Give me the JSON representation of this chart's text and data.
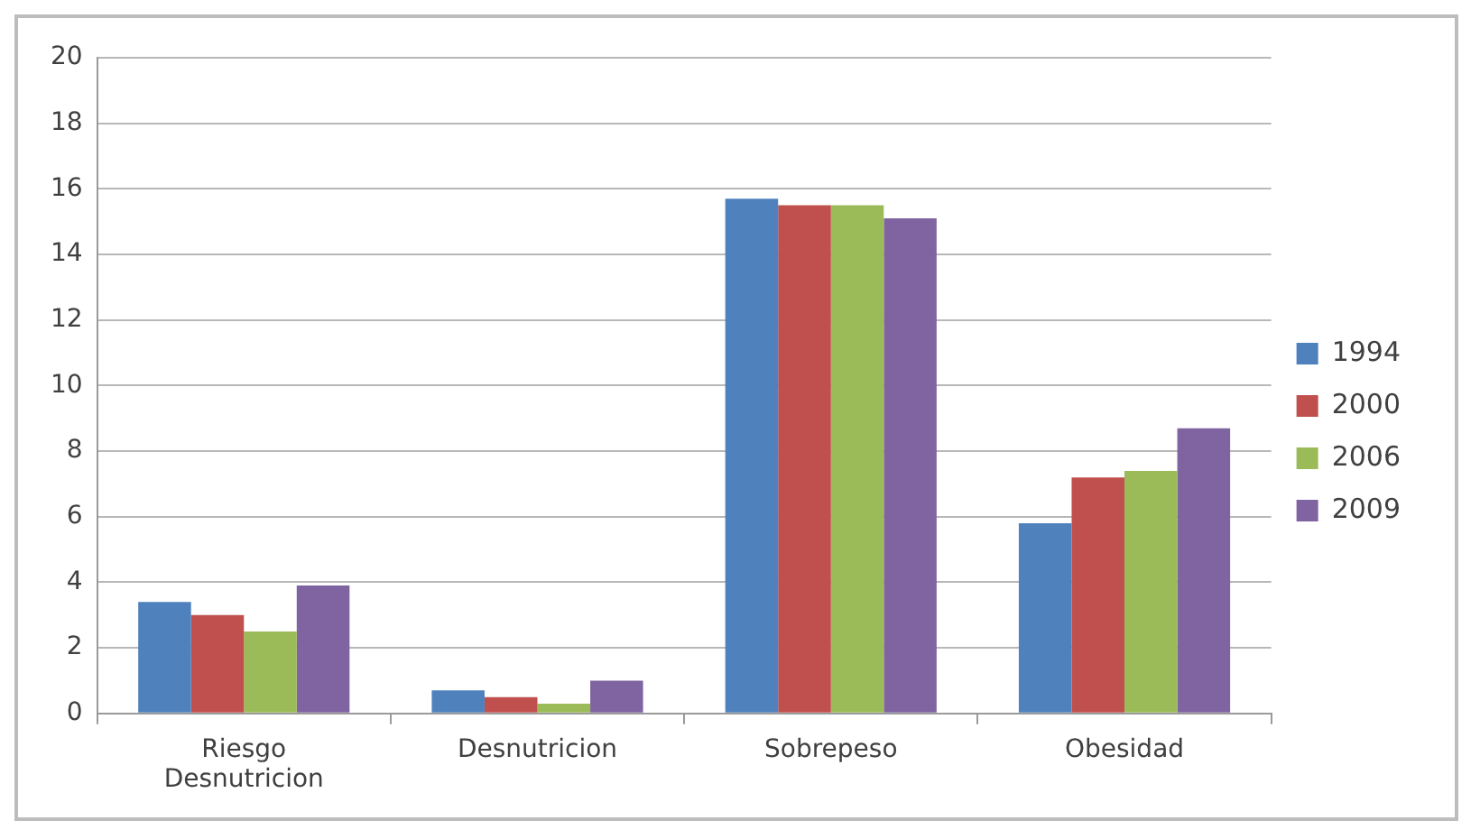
{
  "chart_data": {
    "type": "bar",
    "categories": [
      "Riesgo Desnutricion",
      "Desnutricion",
      "Sobrepeso",
      "Obesidad"
    ],
    "series": [
      {
        "name": "1994",
        "color": "#4f81bd",
        "values": [
          3.4,
          0.7,
          15.7,
          5.8
        ]
      },
      {
        "name": "2000",
        "color": "#c0504d",
        "values": [
          3.0,
          0.5,
          15.5,
          7.2
        ]
      },
      {
        "name": "2006",
        "color": "#9bbb59",
        "values": [
          2.5,
          0.3,
          15.5,
          7.4
        ]
      },
      {
        "name": "2009",
        "color": "#8064a2",
        "values": [
          3.9,
          1.0,
          15.1,
          8.7
        ]
      }
    ],
    "ylim": [
      0,
      20
    ],
    "yticks": [
      0,
      2,
      4,
      6,
      8,
      10,
      12,
      14,
      16,
      18,
      20
    ],
    "grid": "y",
    "legend": "right"
  }
}
